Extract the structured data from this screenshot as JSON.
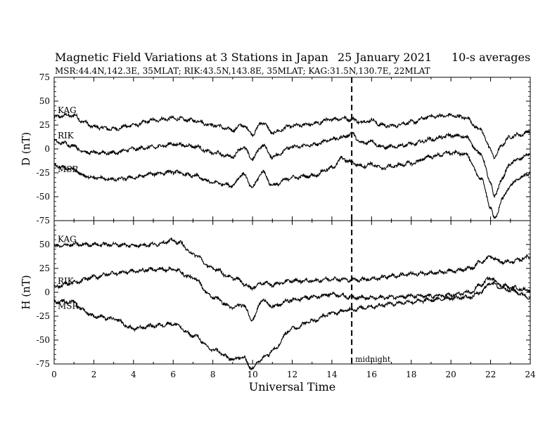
{
  "header": {
    "title": "Magnetic Field Variations at 3 Stations in Japan",
    "date": "25 January 2021",
    "averaging": "10-s averages",
    "stations": "MSR:44.4N,142.3E, 35MLAT;  RIK:43.5N,143.8E, 35MLAT;  KAG:31.5N,130.7E, 22MLAT"
  },
  "annotation": {
    "label": "midnight",
    "x": 15
  },
  "chart_data": [
    {
      "type": "line",
      "panel": "D",
      "ylabel": "D (nT)",
      "ylim": [
        -75,
        75
      ],
      "yticks": [
        75,
        50,
        25,
        0,
        -25,
        -50,
        -75
      ],
      "xlim": [
        0,
        24
      ],
      "series": [
        {
          "name": "KAG",
          "x": [
            0,
            0.5,
            1,
            1.5,
            2,
            3,
            4,
            5,
            6,
            7,
            8,
            9,
            9.5,
            10,
            10.5,
            11,
            12,
            13,
            14,
            14.5,
            15,
            15.5,
            16,
            16.5,
            17,
            18,
            19,
            20,
            20.7,
            21.5,
            22,
            22.2,
            22.6,
            23,
            23.5,
            24
          ],
          "y": [
            33,
            35,
            35,
            28,
            23,
            21,
            25,
            30,
            32,
            30,
            25,
            20,
            25,
            16,
            28,
            17,
            24,
            26,
            31,
            32,
            31,
            28,
            30,
            25,
            24,
            28,
            34,
            35,
            33,
            20,
            0,
            -9,
            5,
            13,
            15,
            18
          ]
        },
        {
          "name": "RIK",
          "x": [
            0,
            0.5,
            1,
            1.5,
            2,
            3,
            4,
            5,
            6,
            7,
            8,
            9,
            9.5,
            10,
            10.5,
            11,
            12,
            13,
            14,
            14.5,
            15,
            15.5,
            16,
            16.5,
            17,
            18,
            19,
            20,
            20.7,
            21.5,
            22,
            22.2,
            22.6,
            23,
            23.5,
            24
          ],
          "y": [
            8,
            6,
            3,
            -3,
            -4,
            -4,
            0,
            2,
            5,
            3,
            -4,
            -8,
            2,
            -10,
            4,
            -8,
            2,
            4,
            10,
            12,
            16,
            6,
            8,
            2,
            2,
            5,
            10,
            14,
            13,
            -5,
            -35,
            -50,
            -30,
            -15,
            -10,
            -5
          ]
        },
        {
          "name": "MSR",
          "x": [
            0,
            0.5,
            1,
            1.5,
            2,
            3,
            4,
            5,
            6,
            7,
            8,
            9,
            9.5,
            10,
            10.5,
            11,
            12,
            13,
            14,
            14.5,
            15,
            15.5,
            16,
            16.5,
            17,
            18,
            19,
            20,
            20.7,
            21.5,
            22,
            22.2,
            22.6,
            23,
            23.5,
            24
          ],
          "y": [
            -17,
            -20,
            -22,
            -28,
            -30,
            -32,
            -30,
            -26,
            -24,
            -28,
            -35,
            -38,
            -26,
            -40,
            -24,
            -38,
            -30,
            -28,
            -20,
            -10,
            -14,
            -18,
            -16,
            -20,
            -18,
            -15,
            -8,
            -4,
            -5,
            -30,
            -60,
            -74,
            -52,
            -38,
            -30,
            -25
          ]
        }
      ],
      "series_labels": [
        "KAG",
        "RIK",
        "MSR"
      ]
    },
    {
      "type": "line",
      "panel": "H",
      "ylabel": "H (nT)",
      "ylim": [
        -75,
        75
      ],
      "yticks": [
        50,
        25,
        0,
        -25,
        -50,
        -75
      ],
      "xlim": [
        0,
        24
      ],
      "xlabel": "Universal Time",
      "xticks": [
        0,
        2,
        4,
        6,
        8,
        10,
        12,
        14,
        16,
        18,
        20,
        22,
        24
      ],
      "series": [
        {
          "name": "KAG",
          "x": [
            0,
            1,
            2,
            3,
            4,
            5,
            6,
            6.3,
            7,
            8,
            9,
            10,
            10.5,
            11,
            12,
            13,
            14,
            15,
            16,
            17,
            18,
            19,
            20,
            21,
            21.5,
            22,
            22.5,
            23,
            24
          ],
          "y": [
            48,
            50,
            50,
            50,
            49,
            50,
            54,
            52,
            40,
            25,
            15,
            5,
            10,
            8,
            12,
            12,
            14,
            13,
            14,
            17,
            19,
            20,
            22,
            25,
            32,
            37,
            32,
            32,
            37
          ]
        },
        {
          "name": "RIK",
          "x": [
            0,
            1,
            2,
            3,
            4,
            5,
            6,
            7,
            8,
            9,
            9.5,
            10,
            10.5,
            11,
            12,
            13,
            14,
            15,
            16,
            17,
            18,
            19,
            20,
            21,
            21.5,
            22,
            22.5,
            23,
            24
          ],
          "y": [
            6,
            10,
            16,
            20,
            22,
            24,
            24,
            15,
            -5,
            -16,
            -13,
            -28,
            -8,
            -15,
            -8,
            -5,
            -2,
            -5,
            -6,
            -5,
            -4,
            -4,
            -3,
            0,
            8,
            15,
            8,
            5,
            2
          ]
        },
        {
          "name": "MSR",
          "x": [
            0,
            1,
            1.4,
            2,
            3,
            4,
            5,
            6,
            7,
            8,
            9,
            9.5,
            10,
            10.3,
            10.8,
            11,
            12,
            13,
            14,
            15,
            16,
            17,
            18,
            19,
            20,
            21,
            21.5,
            22,
            22.5,
            23,
            24
          ],
          "y": [
            -10,
            -10,
            -18,
            -25,
            -28,
            -38,
            -35,
            -33,
            -45,
            -60,
            -70,
            -68,
            -80,
            -72,
            -65,
            -60,
            -38,
            -30,
            -22,
            -18,
            -15,
            -12,
            -10,
            -8,
            -6,
            -5,
            0,
            10,
            5,
            2,
            -5
          ]
        }
      ],
      "series_labels": [
        "KAG",
        "RIK",
        "MSR"
      ]
    }
  ]
}
